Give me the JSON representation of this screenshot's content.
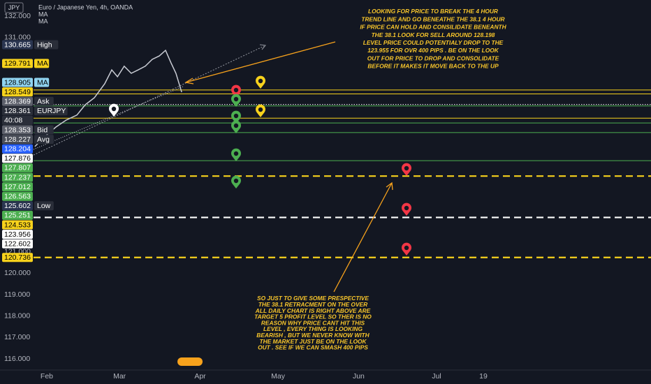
{
  "header": {
    "symbol": "JPY",
    "title": "Euro / Japanese Yen, 4h, OANDA",
    "indicators": [
      "MA",
      "MA"
    ]
  },
  "chart_data": {
    "type": "line",
    "series": [
      {
        "color": "#c9ccd4",
        "x": [
          27.4,
          31.5,
          35.5,
          39.5,
          43.6,
          46.8,
          50.3,
          54.3,
          57.0,
          59.2,
          61.8,
          64.5,
          67.2,
          69.9,
          72.6,
          75.3,
          77.7,
          79.8,
          81.7,
          83.9
        ],
        "values": [
          125.91,
          126.4,
          126.82,
          127.15,
          127.38,
          127.86,
          128.19,
          128.84,
          129.49,
          129.17,
          129.66,
          129.33,
          129.49,
          129.66,
          129.98,
          130.14,
          130.4,
          129.82,
          129.33,
          128.45
        ]
      }
    ],
    "xlim": [
      26.9,
      264.5
    ],
    "xticks": [
      {
        "value": 32,
        "label": "Feb"
      },
      {
        "value": 60,
        "label": "Mar"
      },
      {
        "value": 91,
        "label": "Apr"
      },
      {
        "value": 121,
        "label": "May"
      },
      {
        "value": 152,
        "label": "Jun"
      },
      {
        "value": 182,
        "label": "Jul"
      },
      {
        "value": 200,
        "label": "19"
      }
    ],
    "ylim": [
      114.83,
      132.75
    ],
    "yticks": [
      {
        "value": 132,
        "label": "132.000"
      },
      {
        "value": 131,
        "label": "131.000"
      },
      {
        "value": 121,
        "label": "121.000"
      },
      {
        "value": 120,
        "label": "120.000"
      },
      {
        "value": 119,
        "label": "119.000"
      },
      {
        "value": 118,
        "label": "118.000"
      },
      {
        "value": 117,
        "label": "117.000"
      },
      {
        "value": 116,
        "label": "116.000"
      }
    ],
    "price_labels": [
      {
        "value": 130.665,
        "tag": "High",
        "bg": "#2a3550",
        "fg": "#ffffff"
      },
      {
        "value": 129.791,
        "tag": "MA",
        "bg": "#f7d21c",
        "fg": "#000000"
      },
      {
        "value": 128.905,
        "tag": "MA",
        "bg": "#8fd3f0",
        "fg": "#000000"
      },
      {
        "value": 128.549,
        "bg": "#f7d21c",
        "fg": "#000000"
      },
      {
        "value": 128.369,
        "tag": "Ask",
        "bg": "#5d606b",
        "fg": "#ffffff"
      },
      {
        "value": 128.361,
        "tag": "EURJPY",
        "bg": "#2a2e39",
        "fg": "#ffffff"
      },
      {
        "label": "40:08",
        "bg": "#2a2e39",
        "fg": "#ffffff"
      },
      {
        "value": 128.353,
        "tag": "Bid",
        "bg": "#5d606b",
        "fg": "#ffffff"
      },
      {
        "value": 128.227,
        "tag": "Avg",
        "bg": "#4a4e59",
        "fg": "#ffffff"
      },
      {
        "value": 128.204,
        "bg": "#2962ff",
        "fg": "#ffffff"
      },
      {
        "value": 127.876,
        "bg": "#ffffff",
        "fg": "#000000"
      },
      {
        "value": 127.807,
        "bg": "#4caf50",
        "fg": "#ffffff"
      },
      {
        "value": 127.237,
        "bg": "#4caf50",
        "fg": "#ffffff"
      },
      {
        "value": 127.012,
        "bg": "#4caf50",
        "fg": "#ffffff"
      },
      {
        "value": 126.563,
        "bg": "#4caf50",
        "fg": "#ffffff"
      },
      {
        "value": 125.602,
        "tag": "Low",
        "bg": "#2a3550",
        "fg": "#ffffff"
      },
      {
        "value": 125.251,
        "bg": "#4caf50",
        "fg": "#ffffff"
      },
      {
        "value": 124.533,
        "bg": "#f7d21c",
        "fg": "#000000"
      },
      {
        "value": 123.956,
        "bg": "#ffffff",
        "fg": "#000000"
      },
      {
        "value": 122.602,
        "bg": "#ffffff",
        "fg": "#000000"
      },
      {
        "value": 120.736,
        "bg": "#f7d21c",
        "fg": "#000000"
      }
    ],
    "levels": [
      {
        "value": 128.549,
        "color": "#f7d21c",
        "style": "solid"
      },
      {
        "value": 128.369,
        "color": "#f7d21c",
        "style": "solid"
      },
      {
        "value": 127.876,
        "color": "#ffffff",
        "style": "dotted"
      },
      {
        "value": 127.807,
        "color": "#4caf50",
        "style": "solid"
      },
      {
        "value": 127.237,
        "color": "#f7d21c",
        "style": "solid"
      },
      {
        "value": 127.012,
        "color": "#4caf50",
        "style": "solid"
      },
      {
        "value": 126.563,
        "color": "#4caf50",
        "style": "solid"
      },
      {
        "value": 125.251,
        "color": "#4caf50",
        "style": "solid"
      },
      {
        "value": 124.533,
        "color": "#f7d21c",
        "style": "dashed"
      },
      {
        "value": 122.602,
        "color": "#ffffff",
        "style": "dashed"
      },
      {
        "value": 120.736,
        "color": "#f7d21c",
        "style": "dashed"
      }
    ],
    "annotations": [
      [
        "LOOKING FOR PRICE TO BREAK THE 4 HOUR",
        "TREND LINE AND GO BENEATHE THE 38.1 4 HOUR",
        "IF PRICE CAN HOLD AND CONSILIDATE BENEANTH",
        "THE 38.1 LOOK FOR SELL AROUND 128.198",
        "LEVEL PRICE COULD POTENTIALY DROP TO THE",
        "123.955 FOR OVR 400 PIPS . BE ON THE LOOK",
        "OUT  FOR PRICE TO DROP AND CONSOLIDATE",
        "BEFORE IT MAKES IT MOVE BACK TO THE  UP"
      ],
      [
        "SO JUST TO GIVE SOME PRESPECTIVE",
        "THE 38.1 RETRACMENT ON THE OVER",
        "ALL DAILY CHART IS RIGHT ABOVE ARE",
        "TARGET 5 PROFIT LEVEL SO THER IS NO",
        "REASON WHY PRICE CANT HIT  THIS",
        "LEVEL , EVERY THING IS LOOKING",
        "BEARISH , BUT WE NEVER KNOW WITH",
        "THE MARKET JUST BE ON THE LOOK",
        "OUT . SEE IF WE CAN SMASH 400 PIPS"
      ]
    ]
  }
}
